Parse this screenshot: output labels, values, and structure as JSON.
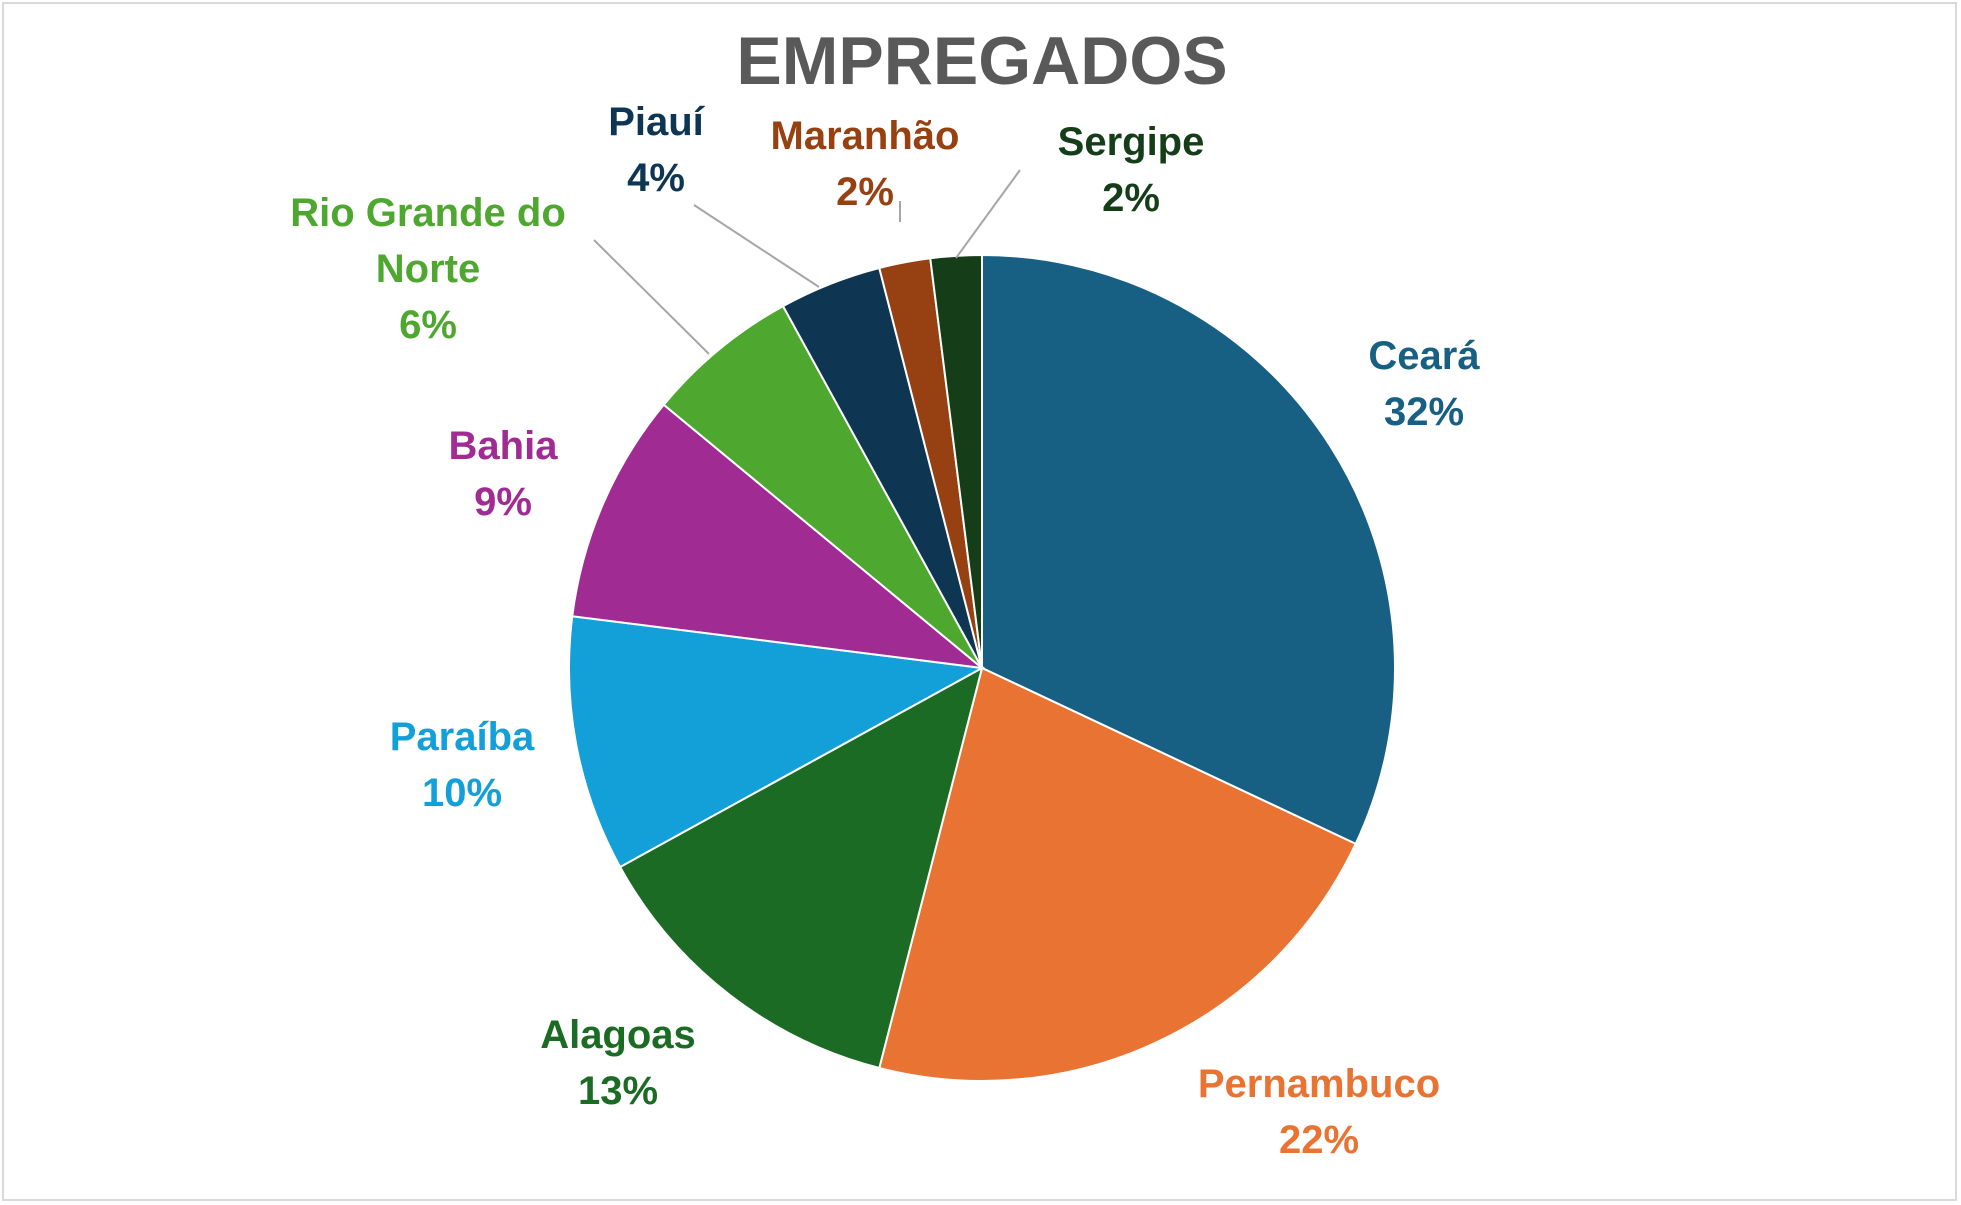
{
  "chart_data": {
    "type": "pie",
    "title": "EMPREGADOS",
    "start_angle_deg": 0,
    "direction": "clockwise",
    "slices": [
      {
        "name": "Ceará",
        "value": 32,
        "label": "32%",
        "color": "#185f84"
      },
      {
        "name": "Pernambuco",
        "value": 22,
        "label": "22%",
        "color": "#e97332"
      },
      {
        "name": "Alagoas",
        "value": 13,
        "label": "13%",
        "color": "#1c6b25"
      },
      {
        "name": "Paraíba",
        "value": 10,
        "label": "10%",
        "color": "#139fd8"
      },
      {
        "name": "Bahia",
        "value": 9,
        "label": "9%",
        "color": "#a02b93"
      },
      {
        "name": "Rio Grande do Norte",
        "value": 6,
        "label": "6%",
        "color": "#4ea72e"
      },
      {
        "name": "Piauí",
        "value": 4,
        "label": "4%",
        "color": "#0e3653"
      },
      {
        "name": "Maranhão",
        "value": 2,
        "label": "2%",
        "color": "#974012"
      },
      {
        "name": "Sergipe",
        "value": 2,
        "label": "2%",
        "color": "#143d18"
      }
    ],
    "legend": "none"
  }
}
